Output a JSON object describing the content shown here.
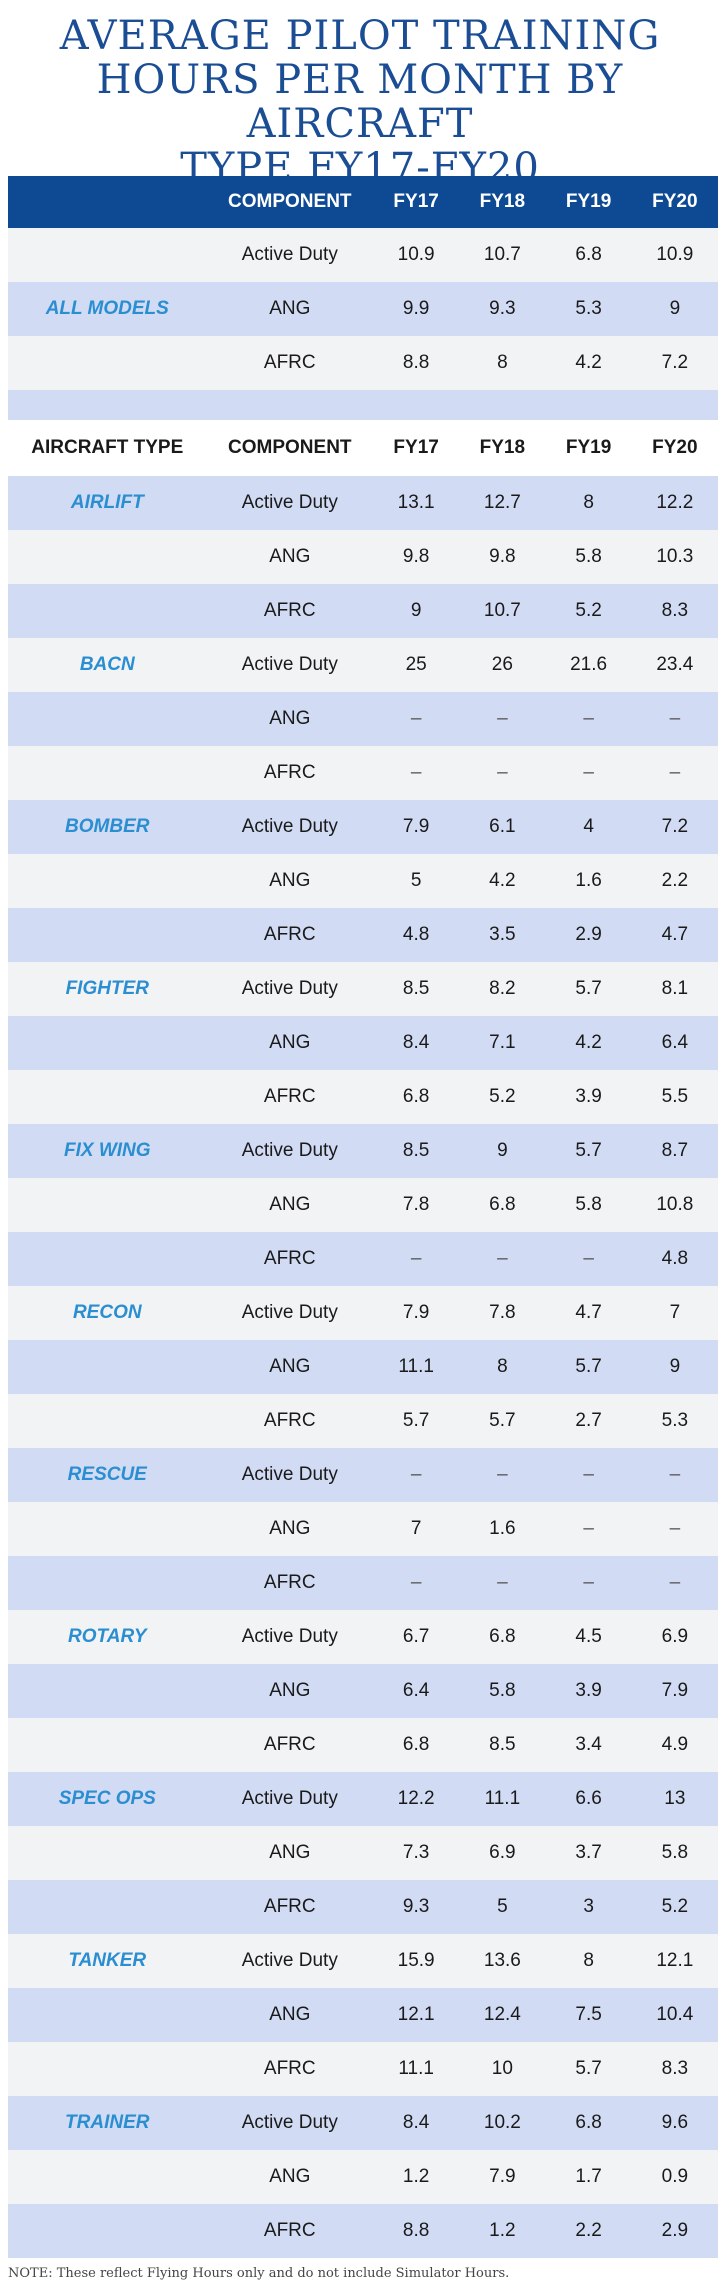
{
  "title": "AVERAGE PILOT TRAINING\nHOURS PER MONTH BY AIRCRAFT\nTYPE  FY17-FY20",
  "note": "NOTE: These reflect Flying Hours only and do not include Simulator Hours.",
  "colors": {
    "header": "#0e4a94",
    "band_blue": "#d1dbf4",
    "band_light": "#f2f3f5",
    "type_label": "#2a8ed1",
    "title": "#1a4d94"
  },
  "chart_data": {
    "type": "table",
    "title": "AVERAGE PILOT TRAINING HOURS PER MONTH BY AIRCRAFT TYPE  FY17-FY20",
    "summary_header": [
      "",
      "COMPONENT",
      "FY17",
      "FY18",
      "FY19",
      "FY20"
    ],
    "summary_rows": [
      [
        "",
        "Active Duty",
        "10.9",
        "10.7",
        "6.8",
        "10.9"
      ],
      [
        "ALL MODELS",
        "ANG",
        "9.9",
        "9.3",
        "5.3",
        "9"
      ],
      [
        "",
        "AFRC",
        "8.8",
        "8",
        "4.2",
        "7.2"
      ]
    ],
    "detail_header": [
      "AIRCRAFT TYPE",
      "COMPONENT",
      "FY17",
      "FY18",
      "FY19",
      "FY20"
    ],
    "detail_rows": [
      [
        "AIRLIFT",
        "Active Duty",
        "13.1",
        "12.7",
        "8",
        "12.2"
      ],
      [
        "",
        "ANG",
        "9.8",
        "9.8",
        "5.8",
        "10.3"
      ],
      [
        "",
        "AFRC",
        "9",
        "10.7",
        "5.2",
        "8.3"
      ],
      [
        "BACN",
        "Active Duty",
        "25",
        "26",
        "21.6",
        "23.4"
      ],
      [
        "",
        "ANG",
        "–",
        "–",
        "–",
        "–"
      ],
      [
        "",
        "AFRC",
        "–",
        "–",
        "–",
        "–"
      ],
      [
        "BOMBER",
        "Active Duty",
        "7.9",
        "6.1",
        "4",
        "7.2"
      ],
      [
        "",
        "ANG",
        "5",
        "4.2",
        "1.6",
        "2.2"
      ],
      [
        "",
        "AFRC",
        "4.8",
        "3.5",
        "2.9",
        "4.7"
      ],
      [
        "FIGHTER",
        "Active Duty",
        "8.5",
        "8.2",
        "5.7",
        "8.1"
      ],
      [
        "",
        "ANG",
        "8.4",
        "7.1",
        "4.2",
        "6.4"
      ],
      [
        "",
        "AFRC",
        "6.8",
        "5.2",
        "3.9",
        "5.5"
      ],
      [
        "FIX WING",
        "Active Duty",
        "8.5",
        "9",
        "5.7",
        "8.7"
      ],
      [
        "",
        "ANG",
        "7.8",
        "6.8",
        "5.8",
        "10.8"
      ],
      [
        "",
        "AFRC",
        "–",
        "–",
        "–",
        "4.8"
      ],
      [
        "RECON",
        "Active Duty",
        "7.9",
        "7.8",
        "4.7",
        "7"
      ],
      [
        "",
        "ANG",
        "11.1",
        "8",
        "5.7",
        "9"
      ],
      [
        "",
        "AFRC",
        "5.7",
        "5.7",
        "2.7",
        "5.3"
      ],
      [
        "RESCUE",
        "Active Duty",
        "–",
        "–",
        "–",
        "–"
      ],
      [
        "",
        "ANG",
        "7",
        "1.6",
        "–",
        "–"
      ],
      [
        "",
        "AFRC",
        "–",
        "–",
        "–",
        "–"
      ],
      [
        "ROTARY",
        "Active Duty",
        "6.7",
        "6.8",
        "4.5",
        "6.9"
      ],
      [
        "",
        "ANG",
        "6.4",
        "5.8",
        "3.9",
        "7.9"
      ],
      [
        "",
        "AFRC",
        "6.8",
        "8.5",
        "3.4",
        "4.9"
      ],
      [
        "SPEC OPS",
        "Active Duty",
        "12.2",
        "11.1",
        "6.6",
        "13"
      ],
      [
        "",
        "ANG",
        "7.3",
        "6.9",
        "3.7",
        "5.8"
      ],
      [
        "",
        "AFRC",
        "9.3",
        "5",
        "3",
        "5.2"
      ],
      [
        "TANKER",
        "Active Duty",
        "15.9",
        "13.6",
        "8",
        "12.1"
      ],
      [
        "",
        "ANG",
        "12.1",
        "12.4",
        "7.5",
        "10.4"
      ],
      [
        "",
        "AFRC",
        "11.1",
        "10",
        "5.7",
        "8.3"
      ],
      [
        "TRAINER",
        "Active Duty",
        "8.4",
        "10.2",
        "6.8",
        "9.6"
      ],
      [
        "",
        "ANG",
        "1.2",
        "7.9",
        "1.7",
        "0.9"
      ],
      [
        "",
        "AFRC",
        "8.8",
        "1.2",
        "2.2",
        "2.9"
      ]
    ]
  }
}
